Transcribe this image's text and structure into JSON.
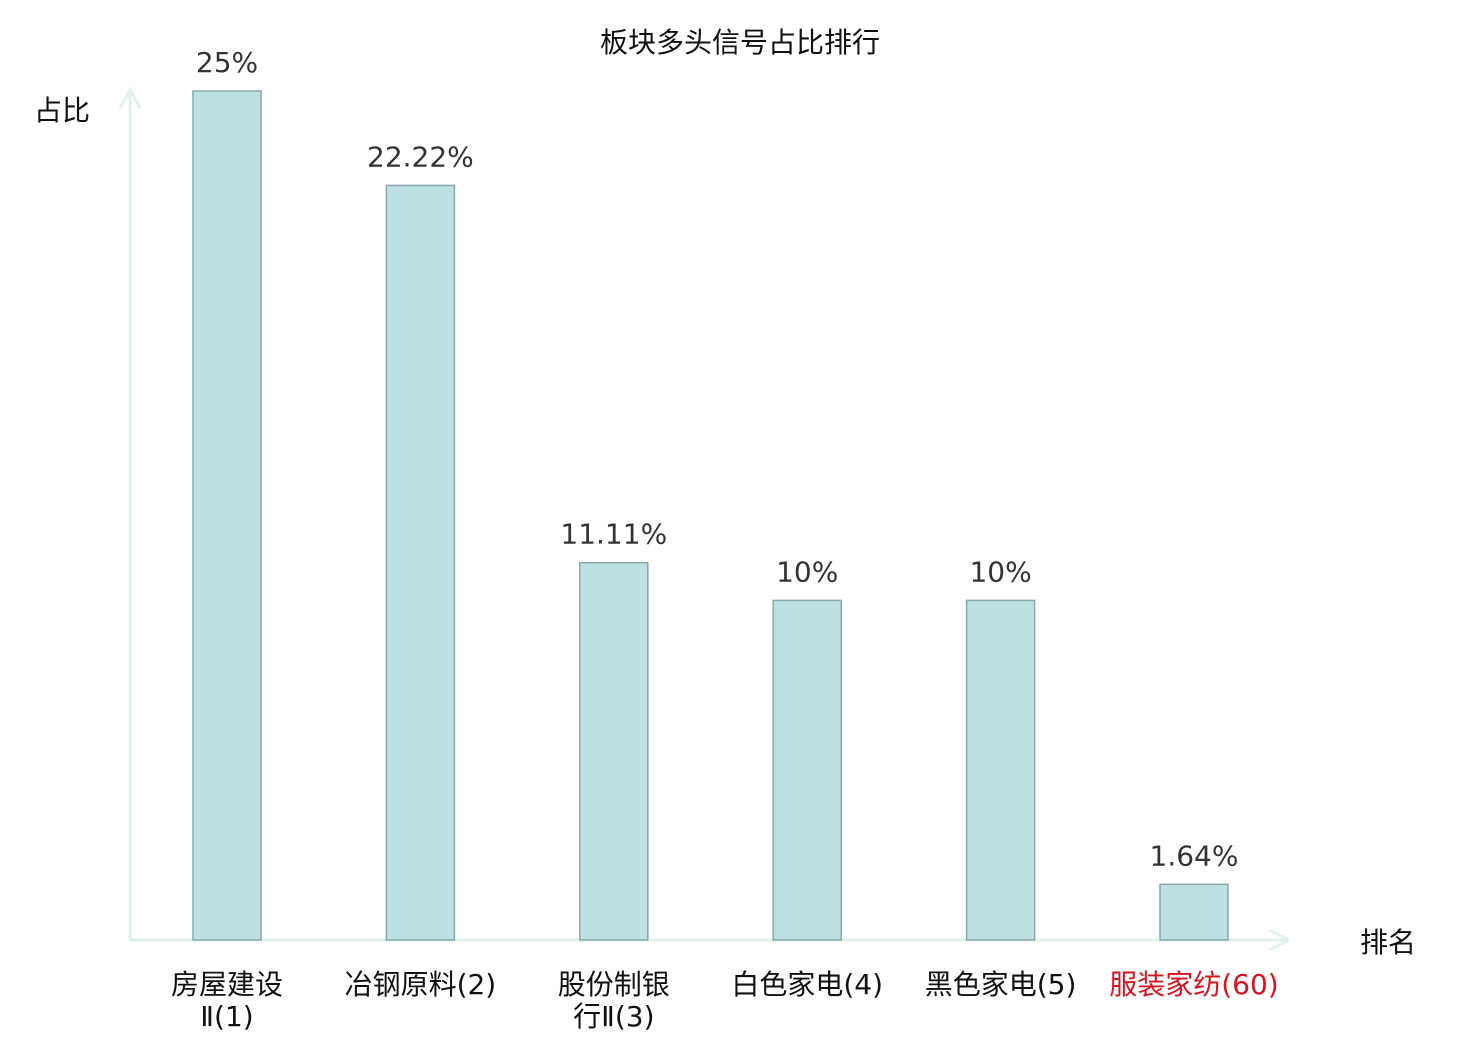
{
  "chart_data": {
    "type": "bar",
    "title": "板块多头信号占比排行",
    "ylabel": "占比",
    "xlabel": "排名",
    "categories": [
      "房屋建设Ⅱ(1)",
      "冶钢原料(2)",
      "股份制银行Ⅱ(3)",
      "白色家电(4)",
      "黑色家电(5)",
      "服装家纺(60)"
    ],
    "category_lines": [
      [
        "房屋建设",
        "Ⅱ(1)"
      ],
      [
        "冶钢原料(2)"
      ],
      [
        "股份制银",
        "行Ⅱ(3)"
      ],
      [
        "白色家电(4)"
      ],
      [
        "黑色家电(5)"
      ],
      [
        "服装家纺(60)"
      ]
    ],
    "values": [
      25,
      22.22,
      11.11,
      10,
      10,
      1.64
    ],
    "value_labels": [
      "25%",
      "22.22%",
      "11.11%",
      "10%",
      "10%",
      "1.64%"
    ],
    "ylim": [
      0,
      25
    ],
    "grid": false,
    "highlight_category_index": 5,
    "colors": {
      "bar_fill": "#bde0e2",
      "bar_stroke": "#8aa8aa",
      "axis": "#e1f2ef",
      "highlight_text": "#d9141e"
    }
  }
}
